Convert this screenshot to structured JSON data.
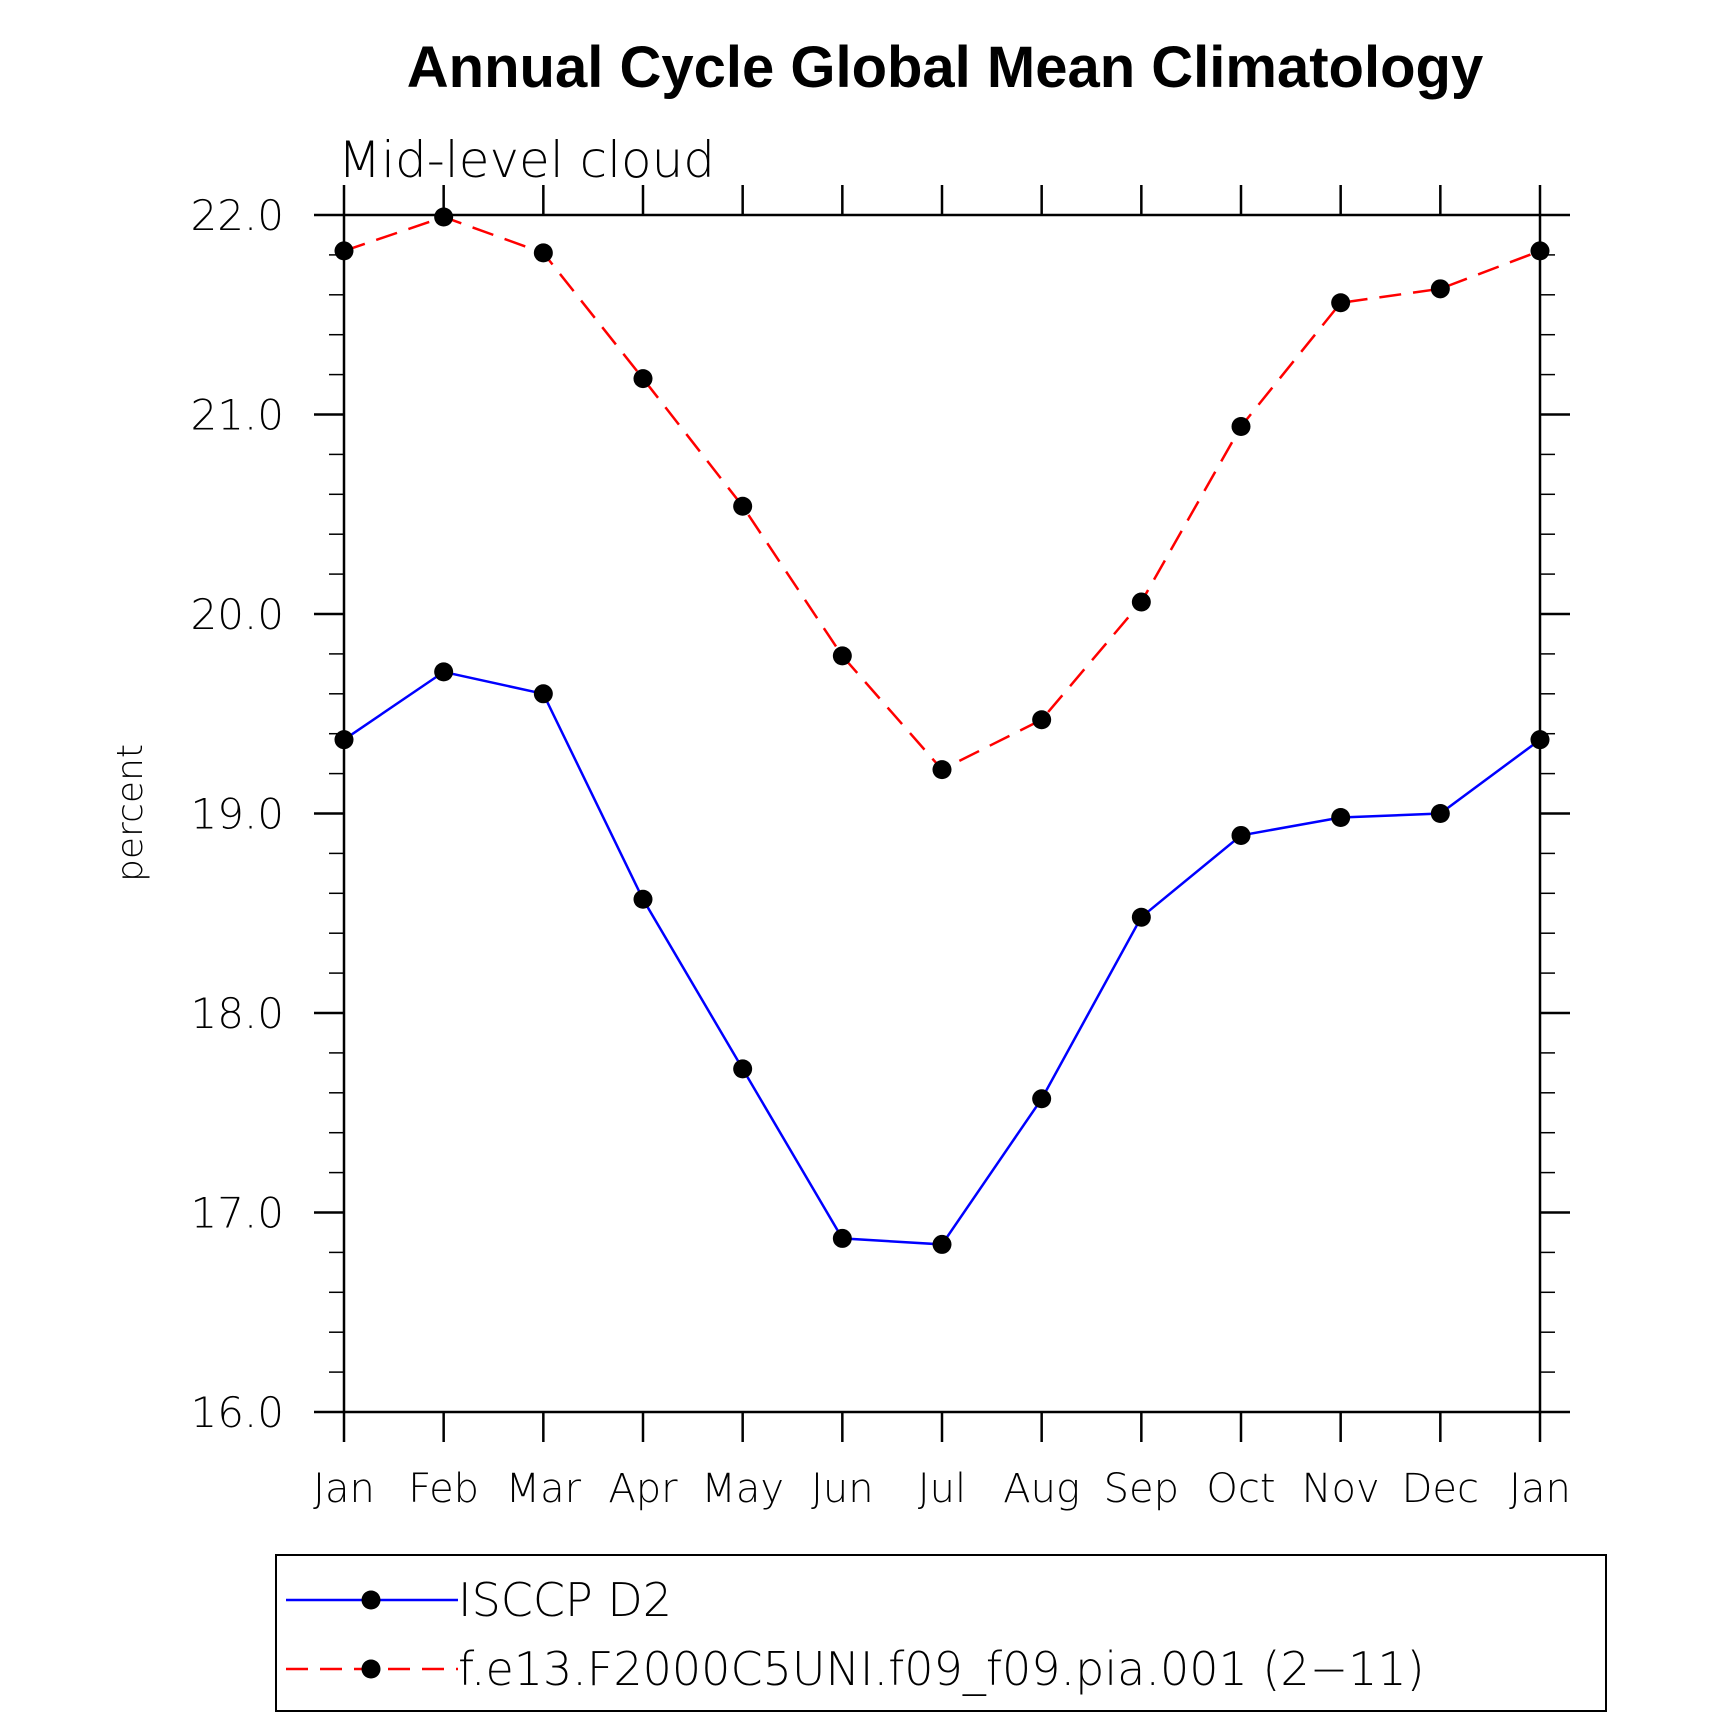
{
  "colors": {
    "series_isccp": "#0000ff",
    "series_model": "#ff0000",
    "markers": "#000000",
    "axes": "#000000",
    "background": "#ffffff"
  },
  "chart_data": {
    "type": "line",
    "title": "Annual Cycle Global Mean Climatology",
    "subtitle": "Mid-level cloud",
    "xlabel": "",
    "ylabel": "percent",
    "categories": [
      "Jan",
      "Feb",
      "Mar",
      "Apr",
      "May",
      "Jun",
      "Jul",
      "Aug",
      "Sep",
      "Oct",
      "Nov",
      "Dec",
      "Jan"
    ],
    "ylim": [
      16.0,
      22.0
    ],
    "yticks": [
      "16.0",
      "17.0",
      "18.0",
      "19.0",
      "20.0",
      "21.0",
      "22.0"
    ],
    "grid": false,
    "legend_position": "bottom",
    "series": [
      {
        "name": "ISCCP D2",
        "style": "solid",
        "marker": "filled-circle",
        "values": [
          19.37,
          19.71,
          19.6,
          18.57,
          17.72,
          16.87,
          16.84,
          17.57,
          18.48,
          18.89,
          18.98,
          19.0,
          19.37
        ]
      },
      {
        "name": "f.e13.F2000C5UNI.f09_f09.pia.001 (2−11)",
        "style": "dashed",
        "marker": "filled-circle",
        "values": [
          21.82,
          21.99,
          21.81,
          21.18,
          20.54,
          19.79,
          19.22,
          19.47,
          20.06,
          20.94,
          21.56,
          21.63,
          21.82
        ]
      }
    ]
  }
}
